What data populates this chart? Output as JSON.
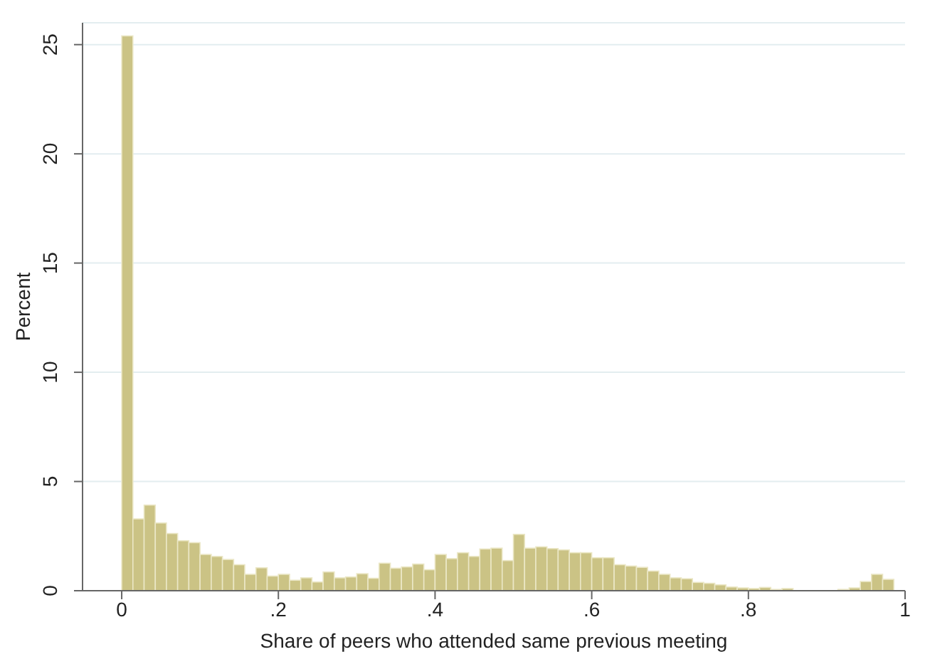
{
  "chart_data": {
    "type": "histogram",
    "xlabel": "Share of peers who attended same previous meeting",
    "ylabel": "Percent",
    "bins": [
      0,
      0.0143,
      0.0286,
      0.0429,
      0.0571,
      0.0714,
      0.0857,
      0.1,
      0.1143,
      0.1286,
      0.1429,
      0.1571,
      0.1714,
      0.1857,
      0.2,
      0.2143,
      0.2286,
      0.2429,
      0.2571,
      0.2714,
      0.2857,
      0.3,
      0.3143,
      0.3286,
      0.3429,
      0.3571,
      0.3714,
      0.3857,
      0.4,
      0.4143,
      0.4286,
      0.4429,
      0.4571,
      0.4714,
      0.4857,
      0.5,
      0.5143,
      0.5286,
      0.5429,
      0.5571,
      0.5714,
      0.5857,
      0.6,
      0.6143,
      0.6286,
      0.6429,
      0.6571,
      0.6714,
      0.6857,
      0.7,
      0.7143,
      0.7286,
      0.7429,
      0.7571,
      0.7714,
      0.7857,
      0.8,
      0.8143,
      0.8286,
      0.8429,
      0.8571,
      0.8714,
      0.8857,
      0.9,
      0.9143,
      0.9286,
      0.9429,
      0.9571,
      0.9714,
      0.9857
    ],
    "values": [
      25.4,
      3.29,
      3.92,
      3.1,
      2.62,
      2.29,
      2.2,
      1.66,
      1.57,
      1.43,
      1.19,
      0.75,
      1.05,
      0.67,
      0.75,
      0.48,
      0.59,
      0.4,
      0.86,
      0.59,
      0.63,
      0.78,
      0.57,
      1.26,
      1.03,
      1.09,
      1.22,
      0.96,
      1.66,
      1.47,
      1.74,
      1.57,
      1.91,
      1.95,
      1.38,
      2.58,
      1.95,
      2.01,
      1.93,
      1.87,
      1.74,
      1.74,
      1.51,
      1.51,
      1.19,
      1.13,
      1.07,
      0.9,
      0.75,
      0.59,
      0.55,
      0.38,
      0.34,
      0.27,
      0.17,
      0.13,
      0.1,
      0.15,
      0.06,
      0.1,
      null,
      null,
      null,
      null,
      0.06,
      0.13,
      0.42,
      0.75,
      0.52
    ],
    "color": "#cbc385",
    "xlim": [
      -0.05,
      1
    ],
    "xticks": [
      0,
      {
        "value": 0.2,
        "label": ".2"
      },
      {
        "value": 0.4,
        "label": ".4"
      },
      {
        "value": 0.6,
        "label": ".6"
      },
      {
        "value": 0.8,
        "label": ".8"
      },
      1
    ],
    "ylim": [
      0,
      26
    ],
    "yticks": [
      0,
      5,
      10,
      15,
      20,
      25
    ],
    "grid": "y"
  }
}
